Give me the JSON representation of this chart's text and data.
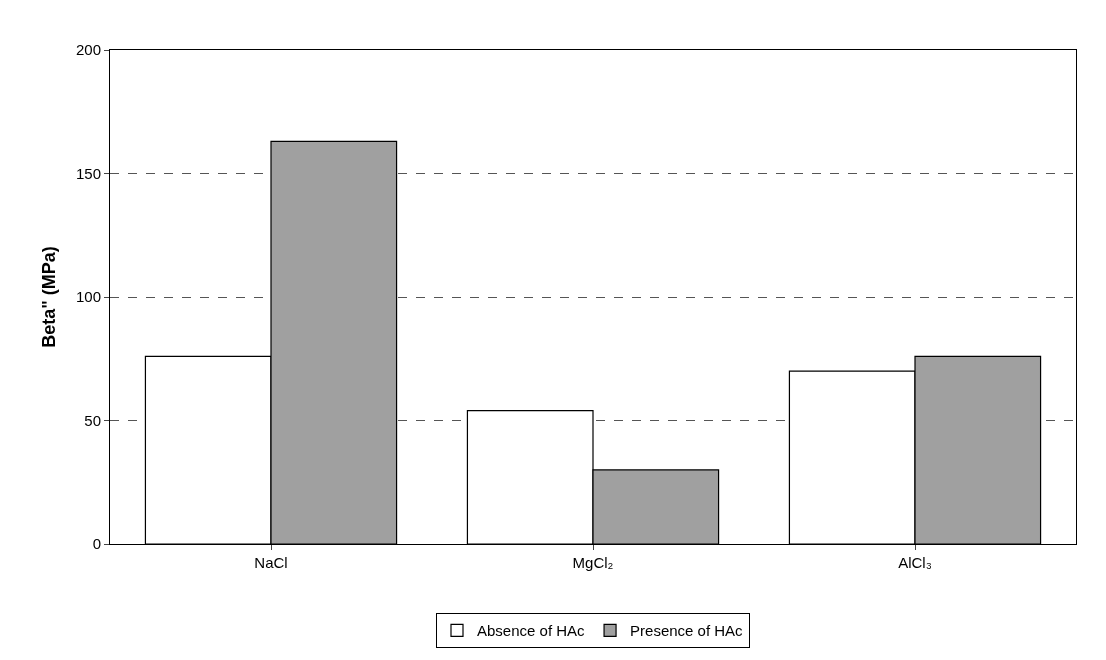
{
  "chart_data": {
    "type": "bar",
    "ylabel": "Beta\" (MPa)",
    "categories": [
      "NaCl",
      "MgCl₂",
      "AlCl₃"
    ],
    "series": [
      {
        "name": "Absence of HAc",
        "color": "#ffffff",
        "values": [
          76,
          54,
          70
        ]
      },
      {
        "name": "Presence of HAc",
        "color": "#a0a0a0",
        "values": [
          163,
          30,
          76
        ]
      }
    ],
    "ylim": [
      0,
      200
    ],
    "yticks": [
      0,
      50,
      100,
      150,
      200
    ],
    "grid": "y",
    "legend": "bottom"
  }
}
